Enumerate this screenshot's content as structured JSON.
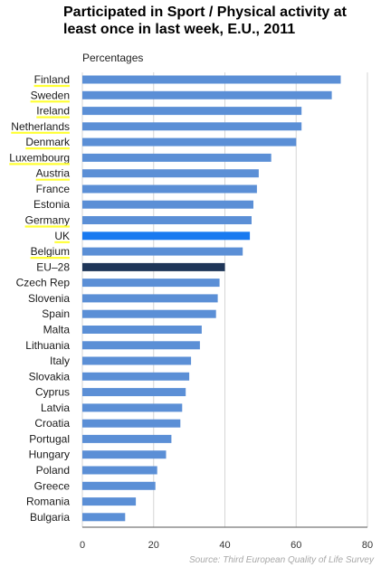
{
  "chart_data": {
    "type": "bar",
    "orientation": "horizontal",
    "title": "Participated in Sport / Physical activity at least once in last week, E.U., 2011",
    "ylabel": "Percentages",
    "xlabel": "",
    "xlim": [
      0,
      80
    ],
    "xticks": [
      0,
      20,
      40,
      60,
      80
    ],
    "source": "Source: Third European Quality of Life Survey",
    "colors": {
      "default": "#5b8fd6",
      "highlight": "#1a7af0",
      "average": "#1f3658",
      "underline": "#ffff33"
    },
    "categories": [
      "Finland",
      "Sweden",
      "Ireland",
      "Netherlands",
      "Denmark",
      "Luxembourg",
      "Austria",
      "France",
      "Estonia",
      "Germany",
      "UK",
      "Belgium",
      "EU–28",
      "Czech Rep",
      "Slovenia",
      "Spain",
      "Malta",
      "Lithuania",
      "Italy",
      "Slovakia",
      "Cyprus",
      "Latvia",
      "Croatia",
      "Portugal",
      "Hungary",
      "Poland",
      "Greece",
      "Romania",
      "Bulgaria"
    ],
    "values": [
      72.5,
      70,
      61.5,
      61.5,
      60,
      53,
      49.5,
      49,
      48,
      47.5,
      47,
      45,
      40,
      38.5,
      38,
      37.5,
      33.5,
      33,
      30.5,
      30,
      29,
      28,
      27.5,
      25,
      23.5,
      21,
      20.5,
      15,
      12
    ],
    "highlighted": [
      "UK"
    ],
    "average": [
      "EU–28"
    ],
    "underlined": [
      "Finland",
      "Sweden",
      "Ireland",
      "Netherlands",
      "Denmark",
      "Luxembourg",
      "Austria",
      "Germany",
      "UK",
      "Belgium"
    ]
  }
}
